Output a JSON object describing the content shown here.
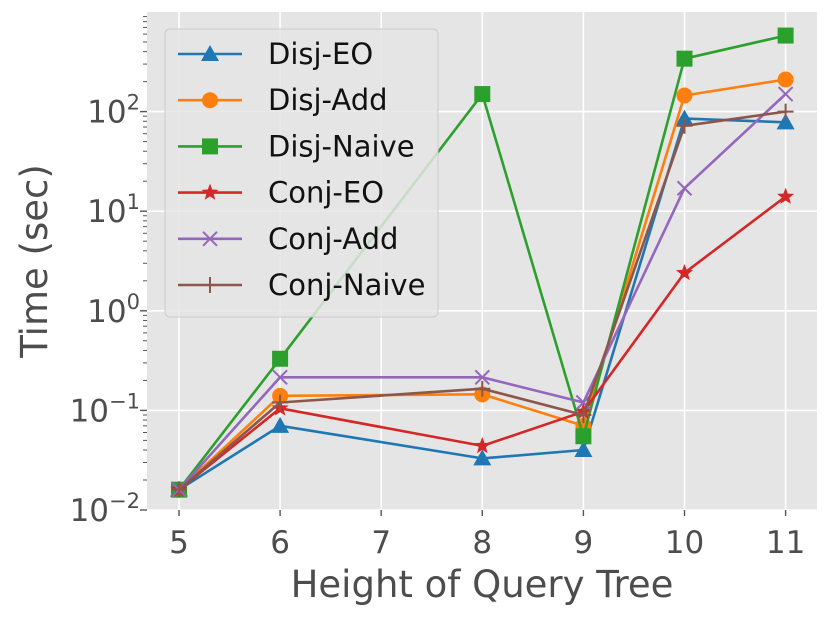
{
  "chart_data": {
    "type": "line",
    "title": "",
    "xlabel": "Height of Query Tree",
    "ylabel": "Time (sec)",
    "y_scale": "log",
    "ylim": [
      0.01,
      1000
    ],
    "categories": [
      "5",
      "6",
      "7",
      "8",
      "9",
      "10",
      "11"
    ],
    "y_ticks": [
      {
        "value": 0.01,
        "base": "10",
        "exp": "−2"
      },
      {
        "value": 0.1,
        "base": "10",
        "exp": "−1"
      },
      {
        "value": 1,
        "base": "10",
        "exp": "0"
      },
      {
        "value": 10,
        "base": "10",
        "exp": "1"
      },
      {
        "value": 100,
        "base": "10",
        "exp": "2"
      }
    ],
    "grid": true,
    "legend_position": "top-left",
    "series": [
      {
        "name": "Disj-EO",
        "color": "#1f77b4",
        "marker": "triangle",
        "values": [
          0.016,
          0.07,
          null,
          0.033,
          0.04,
          85,
          78
        ]
      },
      {
        "name": "Disj-Add",
        "color": "#ff7f0e",
        "marker": "circle",
        "values": [
          0.016,
          0.14,
          null,
          0.145,
          0.07,
          145,
          210
        ]
      },
      {
        "name": "Disj-Naive",
        "color": "#2ca02c",
        "marker": "square",
        "values": [
          0.016,
          0.33,
          null,
          150,
          0.055,
          340,
          580
        ]
      },
      {
        "name": "Conj-EO",
        "color": "#d62728",
        "marker": "star",
        "values": [
          0.016,
          0.105,
          null,
          0.044,
          0.097,
          2.4,
          14
        ]
      },
      {
        "name": "Conj-Add",
        "color": "#9467bd",
        "marker": "x",
        "values": [
          0.016,
          0.215,
          null,
          0.215,
          0.12,
          17,
          150
        ]
      },
      {
        "name": "Conj-Naive",
        "color": "#8c564b",
        "marker": "plus",
        "values": [
          0.016,
          0.12,
          null,
          0.165,
          0.09,
          72,
          100
        ]
      }
    ]
  }
}
